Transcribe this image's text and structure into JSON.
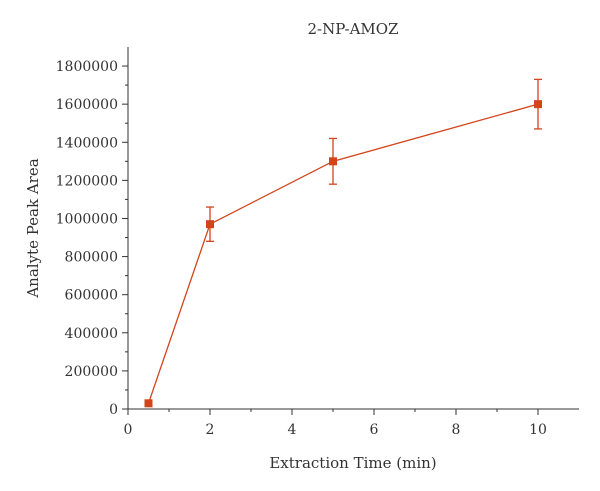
{
  "chart_data": {
    "type": "line",
    "title": "2-NP-AMOZ",
    "xlabel": "Extraction Time (min)",
    "ylabel": "Analyte Peak Area",
    "xlim": [
      0,
      11
    ],
    "ylim": [
      0,
      1900000
    ],
    "x_ticks": [
      0,
      2,
      4,
      6,
      8,
      10
    ],
    "y_ticks": [
      0,
      200000,
      400000,
      600000,
      800000,
      1000000,
      1200000,
      1400000,
      1600000,
      1800000
    ],
    "x_tick_labels": [
      "0",
      "2",
      "4",
      "6",
      "8",
      "10"
    ],
    "y_tick_labels": [
      "0",
      "200000",
      "400000",
      "600000",
      "800000",
      "1000000",
      "1200000",
      "1400000",
      "1600000",
      "1800000"
    ],
    "color": "#d2441a",
    "series": [
      {
        "x": [
          0.5,
          2,
          5,
          10
        ],
        "values": [
          30000,
          970000,
          1300000,
          1600000
        ],
        "error_low": [
          30000,
          880000,
          1180000,
          1470000
        ],
        "error_high": [
          30000,
          1060000,
          1420000,
          1730000
        ]
      }
    ]
  }
}
